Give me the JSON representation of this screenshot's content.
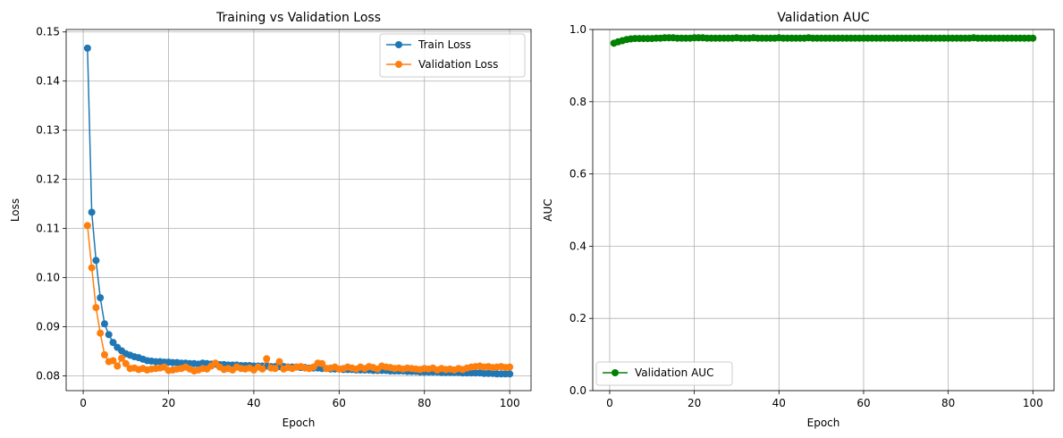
{
  "chart_data": [
    {
      "type": "line",
      "title": "Training vs Validation Loss",
      "xlabel": "Epoch",
      "ylabel": "Loss",
      "xlim": [
        -4,
        105
      ],
      "ylim": [
        0.077,
        0.1505
      ],
      "xticks": [
        0,
        20,
        40,
        60,
        80,
        100
      ],
      "yticks": [
        0.08,
        0.09,
        0.1,
        0.11,
        0.12,
        0.13,
        0.14,
        0.15
      ],
      "ytick_labels": [
        "0.08",
        "0.09",
        "0.10",
        "0.11",
        "0.12",
        "0.13",
        "0.14",
        "0.15"
      ],
      "grid": true,
      "legend": "top-right",
      "x": [
        1,
        2,
        3,
        4,
        5,
        6,
        7,
        8,
        9,
        10,
        11,
        12,
        13,
        14,
        15,
        16,
        17,
        18,
        19,
        20,
        21,
        22,
        23,
        24,
        25,
        26,
        27,
        28,
        29,
        30,
        31,
        32,
        33,
        34,
        35,
        36,
        37,
        38,
        39,
        40,
        41,
        42,
        43,
        44,
        45,
        46,
        47,
        48,
        49,
        50,
        51,
        52,
        53,
        54,
        55,
        56,
        57,
        58,
        59,
        60,
        61,
        62,
        63,
        64,
        65,
        66,
        67,
        68,
        69,
        70,
        71,
        72,
        73,
        74,
        75,
        76,
        77,
        78,
        79,
        80,
        81,
        82,
        83,
        84,
        85,
        86,
        87,
        88,
        89,
        90,
        91,
        92,
        93,
        94,
        95,
        96,
        97,
        98,
        99,
        100
      ],
      "series": [
        {
          "name": "Train Loss",
          "color": "#1f77b4",
          "values": [
            0.1467,
            0.1133,
            0.1035,
            0.0959,
            0.0906,
            0.0884,
            0.0868,
            0.0858,
            0.0851,
            0.0845,
            0.0842,
            0.0839,
            0.0837,
            0.0834,
            0.0831,
            0.083,
            0.0829,
            0.0829,
            0.0828,
            0.0828,
            0.0827,
            0.0827,
            0.0826,
            0.0826,
            0.0825,
            0.0825,
            0.0824,
            0.0826,
            0.0825,
            0.0824,
            0.0824,
            0.0823,
            0.0823,
            0.0822,
            0.0822,
            0.0822,
            0.0821,
            0.0821,
            0.0821,
            0.082,
            0.082,
            0.082,
            0.082,
            0.0819,
            0.0819,
            0.0819,
            0.0819,
            0.0818,
            0.0818,
            0.0818,
            0.0817,
            0.0817,
            0.0816,
            0.0816,
            0.0816,
            0.0815,
            0.0815,
            0.0814,
            0.0814,
            0.0814,
            0.0813,
            0.0813,
            0.0813,
            0.0812,
            0.0812,
            0.0812,
            0.0812,
            0.0811,
            0.0811,
            0.0811,
            0.0811,
            0.081,
            0.081,
            0.081,
            0.081,
            0.0809,
            0.0809,
            0.0809,
            0.0808,
            0.0808,
            0.0808,
            0.0808,
            0.0808,
            0.0807,
            0.0807,
            0.0807,
            0.0807,
            0.0807,
            0.0806,
            0.0806,
            0.0806,
            0.0806,
            0.0806,
            0.0805,
            0.0805,
            0.0805,
            0.0804,
            0.0804,
            0.0804,
            0.0804
          ]
        },
        {
          "name": "Validation Loss",
          "color": "#ff7f0e",
          "values": [
            0.1106,
            0.102,
            0.0939,
            0.0887,
            0.0843,
            0.0829,
            0.0831,
            0.082,
            0.0836,
            0.0825,
            0.0815,
            0.0816,
            0.0813,
            0.0815,
            0.0812,
            0.0814,
            0.0815,
            0.0816,
            0.0818,
            0.0811,
            0.0812,
            0.0814,
            0.0815,
            0.0818,
            0.0814,
            0.081,
            0.0812,
            0.0815,
            0.0814,
            0.082,
            0.0826,
            0.0818,
            0.0813,
            0.0815,
            0.0812,
            0.0818,
            0.0815,
            0.0814,
            0.0816,
            0.0812,
            0.0818,
            0.0814,
            0.0835,
            0.0816,
            0.0815,
            0.0829,
            0.0814,
            0.0817,
            0.0815,
            0.0818,
            0.0819,
            0.0816,
            0.0815,
            0.0818,
            0.0826,
            0.0825,
            0.0815,
            0.0816,
            0.0818,
            0.0814,
            0.0815,
            0.0818,
            0.0816,
            0.0814,
            0.0818,
            0.0815,
            0.0819,
            0.0817,
            0.0814,
            0.082,
            0.0818,
            0.0817,
            0.0815,
            0.0816,
            0.0814,
            0.0816,
            0.0815,
            0.0814,
            0.0813,
            0.0815,
            0.0814,
            0.0816,
            0.0812,
            0.0815,
            0.0813,
            0.0814,
            0.0812,
            0.0815,
            0.0813,
            0.0816,
            0.0818,
            0.0819,
            0.082,
            0.0818,
            0.0819,
            0.0817,
            0.0818,
            0.0819,
            0.0817,
            0.0818
          ]
        }
      ]
    },
    {
      "type": "line",
      "title": "Validation AUC",
      "xlabel": "Epoch",
      "ylabel": "AUC",
      "xlim": [
        -4,
        105
      ],
      "ylim": [
        0.0,
        1.0
      ],
      "xticks": [
        0,
        20,
        40,
        60,
        80,
        100
      ],
      "yticks": [
        0.0,
        0.2,
        0.4,
        0.6,
        0.8,
        1.0
      ],
      "ytick_labels": [
        "0.0",
        "0.2",
        "0.4",
        "0.6",
        "0.8",
        "1.0"
      ],
      "grid": true,
      "legend": "bottom-left",
      "x": [
        1,
        2,
        3,
        4,
        5,
        6,
        7,
        8,
        9,
        10,
        11,
        12,
        13,
        14,
        15,
        16,
        17,
        18,
        19,
        20,
        21,
        22,
        23,
        24,
        25,
        26,
        27,
        28,
        29,
        30,
        31,
        32,
        33,
        34,
        35,
        36,
        37,
        38,
        39,
        40,
        41,
        42,
        43,
        44,
        45,
        46,
        47,
        48,
        49,
        50,
        51,
        52,
        53,
        54,
        55,
        56,
        57,
        58,
        59,
        60,
        61,
        62,
        63,
        64,
        65,
        66,
        67,
        68,
        69,
        70,
        71,
        72,
        73,
        74,
        75,
        76,
        77,
        78,
        79,
        80,
        81,
        82,
        83,
        84,
        85,
        86,
        87,
        88,
        89,
        90,
        91,
        92,
        93,
        94,
        95,
        96,
        97,
        98,
        99,
        100
      ],
      "series": [
        {
          "name": "Validation AUC",
          "color": "#008000",
          "values": [
            0.962,
            0.966,
            0.969,
            0.972,
            0.974,
            0.975,
            0.975,
            0.975,
            0.975,
            0.975,
            0.976,
            0.976,
            0.977,
            0.977,
            0.977,
            0.976,
            0.976,
            0.976,
            0.976,
            0.977,
            0.977,
            0.977,
            0.976,
            0.976,
            0.976,
            0.976,
            0.976,
            0.976,
            0.976,
            0.977,
            0.976,
            0.976,
            0.976,
            0.977,
            0.976,
            0.976,
            0.976,
            0.976,
            0.976,
            0.977,
            0.976,
            0.976,
            0.976,
            0.976,
            0.976,
            0.976,
            0.977,
            0.976,
            0.976,
            0.976,
            0.976,
            0.976,
            0.976,
            0.976,
            0.976,
            0.976,
            0.976,
            0.976,
            0.976,
            0.976,
            0.976,
            0.976,
            0.976,
            0.976,
            0.976,
            0.976,
            0.976,
            0.976,
            0.976,
            0.976,
            0.976,
            0.976,
            0.976,
            0.976,
            0.976,
            0.976,
            0.976,
            0.976,
            0.976,
            0.976,
            0.976,
            0.976,
            0.976,
            0.976,
            0.976,
            0.977,
            0.976,
            0.976,
            0.976,
            0.976,
            0.976,
            0.976,
            0.976,
            0.976,
            0.976,
            0.976,
            0.976,
            0.976,
            0.976,
            0.976
          ]
        }
      ]
    }
  ]
}
